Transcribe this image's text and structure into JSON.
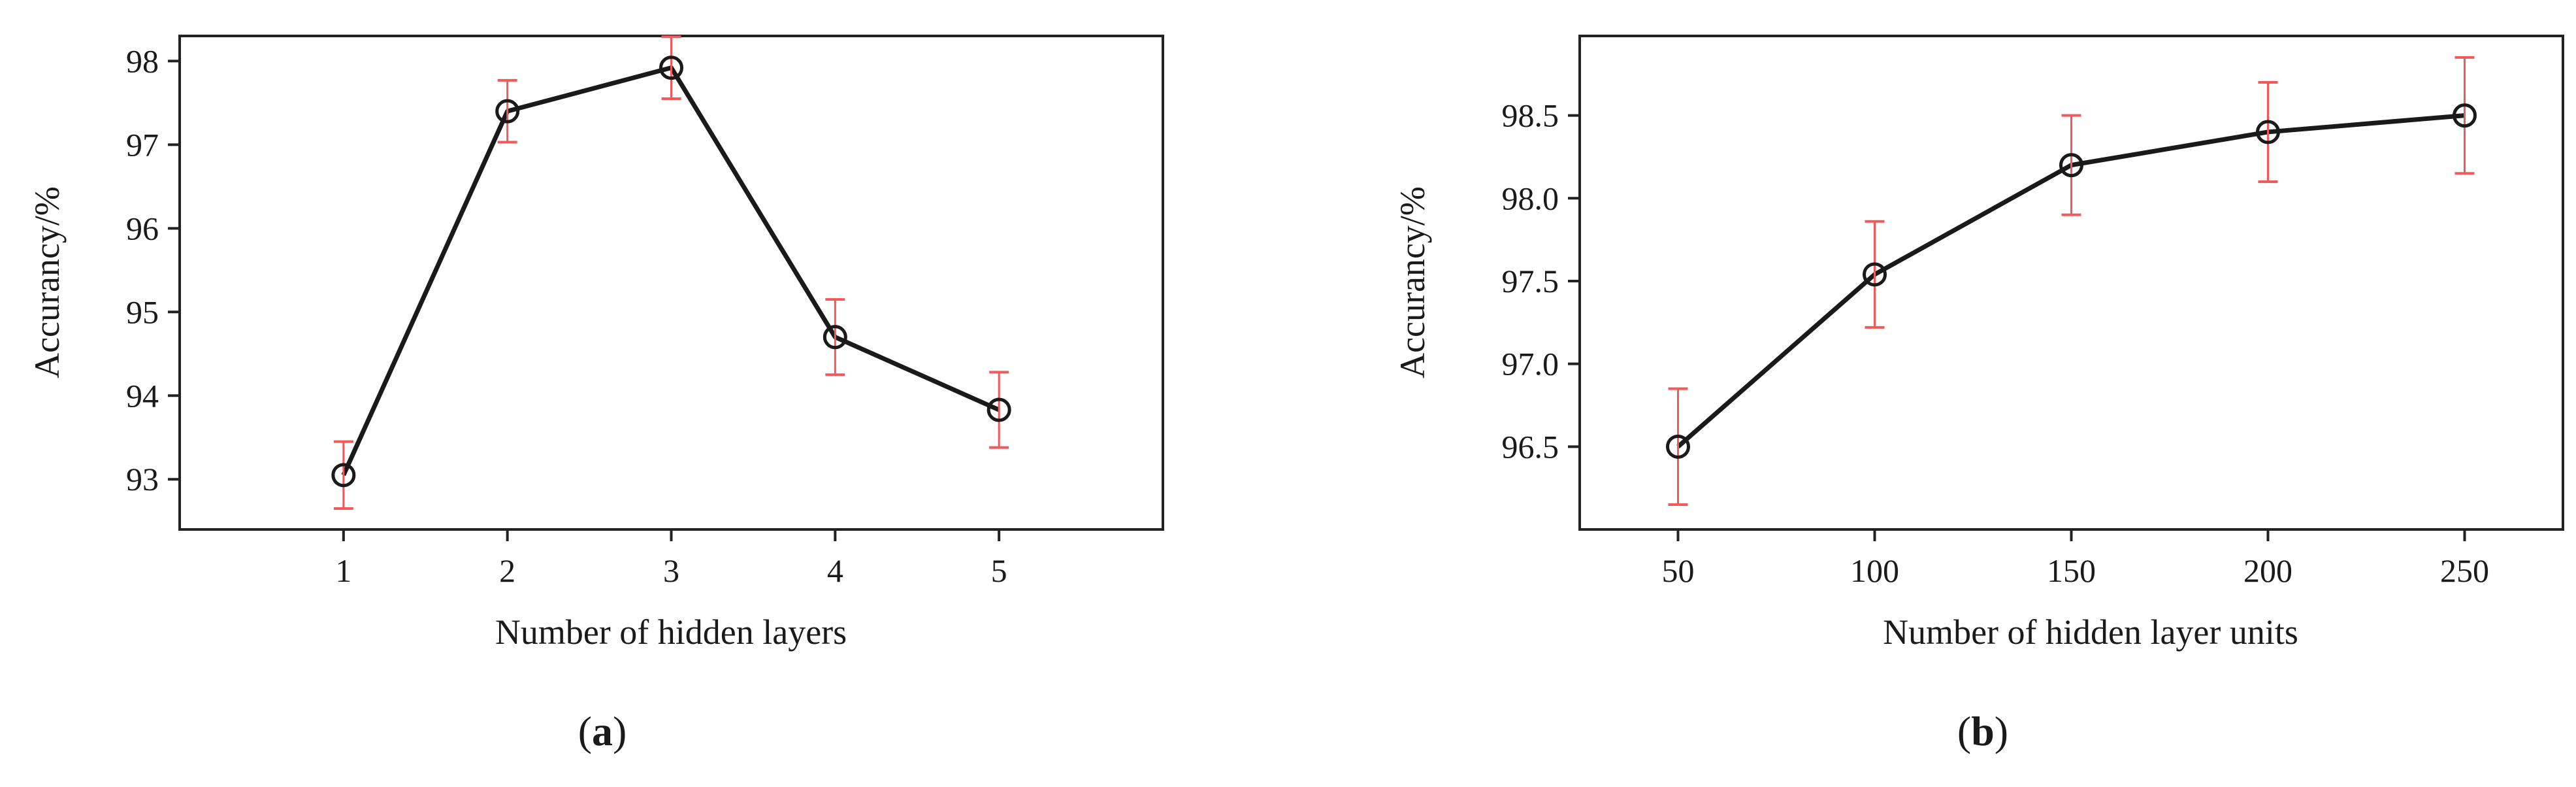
{
  "chart_data": [
    {
      "panel_label": "a",
      "type": "line",
      "xlabel": "Number of hidden layers",
      "ylabel": "Accurancy/%",
      "x": [
        1,
        2,
        3,
        4,
        5
      ],
      "xticks": [
        "1",
        "2",
        "3",
        "4",
        "5"
      ],
      "xlim": [
        0,
        6
      ],
      "yticks": [
        "93",
        "94",
        "95",
        "96",
        "97",
        "98"
      ],
      "ytick_values": [
        93,
        94,
        95,
        96,
        97,
        98
      ],
      "ylim": [
        92.4,
        98.3
      ],
      "series": [
        {
          "values": [
            93.05,
            97.4,
            97.92,
            94.7,
            93.83
          ],
          "error": [
            0.4,
            0.37,
            0.37,
            0.45,
            0.45
          ]
        }
      ],
      "grid": false,
      "line_color": "#1a1a1a",
      "errorbar_color": "#f05a5a"
    },
    {
      "panel_label": "b",
      "type": "line",
      "xlabel": "Number of hidden layer units",
      "ylabel": "Accurancy/%",
      "x": [
        50,
        100,
        150,
        200,
        250
      ],
      "xticks": [
        "50",
        "100",
        "150",
        "200",
        "250"
      ],
      "xlim": [
        25,
        275
      ],
      "yticks": [
        "96.5",
        "97.0",
        "97.5",
        "98.0",
        "98.5"
      ],
      "ytick_values": [
        96.5,
        97.0,
        97.5,
        98.0,
        98.5
      ],
      "ylim": [
        96.0,
        98.98
      ],
      "series": [
        {
          "values": [
            96.5,
            97.54,
            98.2,
            98.4,
            98.5
          ],
          "error": [
            0.35,
            0.32,
            0.3,
            0.3,
            0.35
          ]
        }
      ],
      "grid": false,
      "line_color": "#1a1a1a",
      "errorbar_color": "#f05a5a"
    }
  ]
}
